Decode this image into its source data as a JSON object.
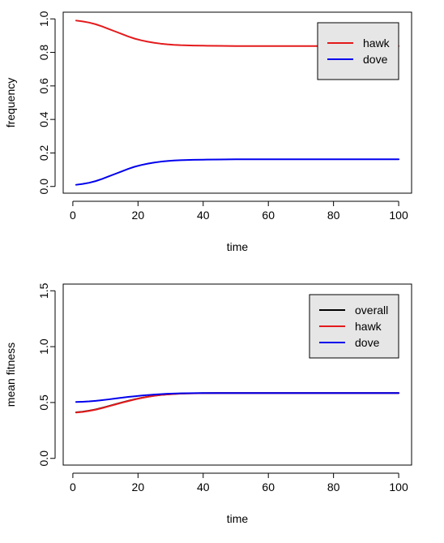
{
  "chart_data": [
    {
      "type": "line",
      "title": "",
      "xlabel": "time",
      "ylabel": "frequency",
      "xlim": [
        1,
        100
      ],
      "ylim": [
        0,
        1
      ],
      "x_ticks": [
        0,
        20,
        40,
        60,
        80,
        100
      ],
      "y_ticks": [
        0,
        0.2,
        0.4,
        0.6,
        0.8,
        1
      ],
      "x_tick_labels": [
        "0",
        "20",
        "40",
        "60",
        "80",
        "100"
      ],
      "y_tick_labels": [
        "0.0",
        "0.2",
        "0.4",
        "0.6",
        "0.8",
        "1.0"
      ],
      "grid": false,
      "legend_position": "top-right",
      "series": [
        {
          "name": "hawk",
          "color": "#e41a1c",
          "x": [
            1,
            3,
            5,
            7,
            9,
            11,
            13,
            15,
            17,
            19,
            21,
            23,
            25,
            27,
            29,
            31,
            33,
            35,
            37,
            40,
            45,
            50,
            60,
            70,
            80,
            90,
            100
          ],
          "values": [
            0.99,
            0.985,
            0.978,
            0.968,
            0.955,
            0.94,
            0.925,
            0.91,
            0.895,
            0.882,
            0.872,
            0.864,
            0.857,
            0.852,
            0.848,
            0.845,
            0.843,
            0.842,
            0.841,
            0.84,
            0.839,
            0.838,
            0.838,
            0.838,
            0.838,
            0.838,
            0.838
          ]
        },
        {
          "name": "dove",
          "color": "#0000ee",
          "x": [
            1,
            3,
            5,
            7,
            9,
            11,
            13,
            15,
            17,
            19,
            21,
            23,
            25,
            27,
            29,
            31,
            33,
            35,
            37,
            40,
            45,
            50,
            60,
            70,
            80,
            90,
            100
          ],
          "values": [
            0.01,
            0.015,
            0.022,
            0.032,
            0.045,
            0.06,
            0.075,
            0.09,
            0.105,
            0.118,
            0.128,
            0.136,
            0.143,
            0.148,
            0.152,
            0.155,
            0.157,
            0.158,
            0.159,
            0.16,
            0.161,
            0.162,
            0.162,
            0.162,
            0.162,
            0.162,
            0.162
          ]
        }
      ]
    },
    {
      "type": "line",
      "title": "",
      "xlabel": "time",
      "ylabel": "mean fitness",
      "xlim": [
        1,
        100
      ],
      "ylim": [
        0,
        1.5
      ],
      "x_ticks": [
        0,
        20,
        40,
        60,
        80,
        100
      ],
      "y_ticks": [
        0,
        0.5,
        1,
        1.5
      ],
      "x_tick_labels": [
        "0",
        "20",
        "40",
        "60",
        "80",
        "100"
      ],
      "y_tick_labels": [
        "0.0",
        "0.5",
        "1.0",
        "1.5"
      ],
      "grid": false,
      "legend_position": "top-right",
      "series": [
        {
          "name": "overall",
          "color": "#000000",
          "x": [
            1,
            3,
            5,
            7,
            9,
            11,
            13,
            15,
            17,
            19,
            21,
            23,
            25,
            27,
            29,
            31,
            33,
            35,
            37,
            40,
            45,
            50,
            60,
            70,
            80,
            90,
            100
          ],
          "values": [
            0.412,
            0.418,
            0.427,
            0.438,
            0.452,
            0.468,
            0.484,
            0.5,
            0.515,
            0.529,
            0.541,
            0.552,
            0.561,
            0.568,
            0.573,
            0.577,
            0.58,
            0.582,
            0.583,
            0.584,
            0.585,
            0.585,
            0.585,
            0.585,
            0.585,
            0.585,
            0.585
          ]
        },
        {
          "name": "hawk",
          "color": "#e41a1c",
          "x": [
            1,
            3,
            5,
            7,
            9,
            11,
            13,
            15,
            17,
            19,
            21,
            23,
            25,
            27,
            29,
            31,
            33,
            35,
            37,
            40,
            45,
            50,
            60,
            70,
            80,
            90,
            100
          ],
          "values": [
            0.41,
            0.416,
            0.425,
            0.436,
            0.45,
            0.466,
            0.482,
            0.498,
            0.513,
            0.527,
            0.54,
            0.551,
            0.56,
            0.567,
            0.572,
            0.576,
            0.579,
            0.581,
            0.582,
            0.584,
            0.585,
            0.585,
            0.585,
            0.585,
            0.585,
            0.585,
            0.585
          ]
        },
        {
          "name": "dove",
          "color": "#0000ee",
          "x": [
            1,
            3,
            5,
            7,
            9,
            11,
            13,
            15,
            17,
            19,
            21,
            23,
            25,
            27,
            29,
            31,
            33,
            35,
            37,
            40,
            45,
            50,
            60,
            70,
            80,
            90,
            100
          ],
          "values": [
            0.505,
            0.507,
            0.51,
            0.515,
            0.521,
            0.528,
            0.536,
            0.543,
            0.55,
            0.556,
            0.562,
            0.567,
            0.571,
            0.575,
            0.578,
            0.58,
            0.582,
            0.583,
            0.584,
            0.585,
            0.585,
            0.585,
            0.585,
            0.585,
            0.585,
            0.585,
            0.585
          ]
        }
      ]
    }
  ]
}
